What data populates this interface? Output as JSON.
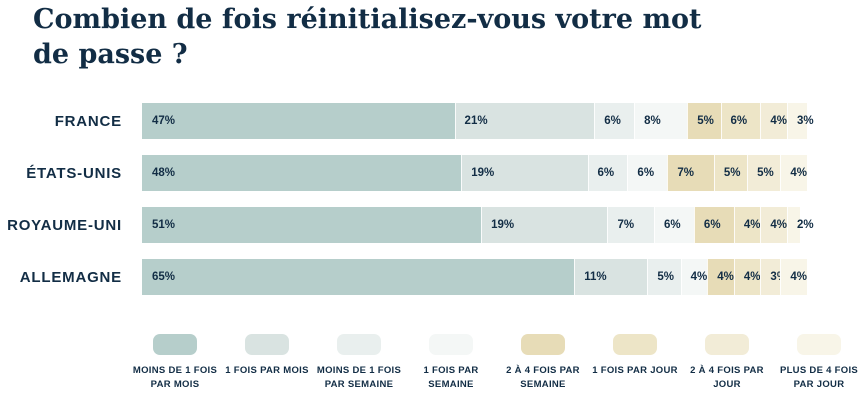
{
  "page": {
    "title_lines": [
      "Combien de fois réinitialisez-vous votre mot",
      "de passe ?"
    ]
  },
  "chart_data": {
    "type": "bar",
    "orientation": "horizontal",
    "stacked": true,
    "title": "Combien de fois réinitialisez-vous votre mot de passe ?",
    "value_suffix": "%",
    "legend_position": "bottom",
    "grid": false,
    "xlim": [
      0,
      100
    ],
    "text_color": "#122d45",
    "categories": [
      "FRANCE",
      "ÉTATS-UNIS",
      "ROYAUME-UNI",
      "ALLEMAGNE"
    ],
    "series": [
      {
        "name": "MOINS DE 1 FOIS PAR MOIS",
        "color": "#b6cecb",
        "values": [
          47,
          48,
          51,
          65
        ]
      },
      {
        "name": "1 FOIS PAR MOIS",
        "color": "#d9e3e1",
        "values": [
          21,
          19,
          19,
          11
        ]
      },
      {
        "name": "MOINS DE 1 FOIS PAR SEMAINE",
        "color": "#e9efee",
        "values": [
          6,
          6,
          7,
          5
        ]
      },
      {
        "name": "1 FOIS PAR SEMAINE",
        "color": "#f4f7f6",
        "values": [
          8,
          6,
          6,
          4
        ]
      },
      {
        "name": "2 À 4 FOIS PAR SEMAINE",
        "color": "#e7dcb7",
        "values": [
          5,
          7,
          6,
          4
        ]
      },
      {
        "name": "1 FOIS PAR JOUR",
        "color": "#ede5c7",
        "values": [
          6,
          5,
          4,
          4
        ]
      },
      {
        "name": "2 À 4 FOIS PAR JOUR",
        "color": "#f2ecd7",
        "values": [
          4,
          5,
          4,
          3
        ]
      },
      {
        "name": "PLUS DE 4 FOIS PAR JOUR",
        "color": "#f8f5e8",
        "values": [
          3,
          4,
          2,
          4
        ]
      }
    ]
  }
}
